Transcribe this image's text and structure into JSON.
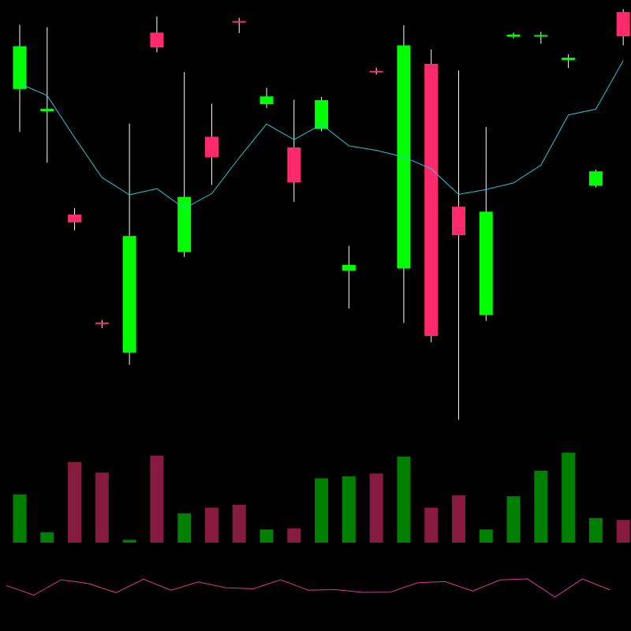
{
  "chart_data": {
    "type": "candlestick",
    "grid": false,
    "background": "#000000",
    "colors": {
      "up_body": "#00ff00",
      "down_body": "#ff2a6d",
      "wick": "#ffffff",
      "ma_line": "#1fc8d8",
      "up_volume": "#008000",
      "down_volume": "#861a40",
      "indicator_line": "#e0359a"
    },
    "price_range": [
      0,
      100
    ],
    "candles": [
      {
        "open": 80.3,
        "close": 90.7,
        "high": 95.9,
        "low": 69.9,
        "ma": 81.6
      },
      {
        "open": 74.9,
        "close": 75.5,
        "high": 95.3,
        "low": 62.4,
        "ma": 78.7
      },
      {
        "open": 49.8,
        "close": 47.9,
        "high": 51.4,
        "low": 46.0,
        "ma": 68.5
      },
      {
        "open": 23.6,
        "close": 23.2,
        "high": 24.2,
        "low": 22.2,
        "ma": 58.8
      },
      {
        "open": 16.3,
        "close": 44.6,
        "high": 71.9,
        "low": 13.3,
        "ma": 54.6
      },
      {
        "open": 94.0,
        "close": 90.4,
        "high": 97.9,
        "low": 89.2,
        "ma": 56.1
      },
      {
        "open": 40.7,
        "close": 54.1,
        "high": 84.4,
        "low": 39.5,
        "ma": 51.3
      },
      {
        "open": 68.7,
        "close": 63.7,
        "high": 76.7,
        "low": 57.0,
        "ma": 54.9
      },
      {
        "open": 96.8,
        "close": 96.6,
        "high": 97.6,
        "low": 93.9,
        "ma": 63.6
      },
      {
        "open": 76.6,
        "close": 78.5,
        "high": 80.6,
        "low": 75.7,
        "ma": 71.8
      },
      {
        "open": 66.1,
        "close": 57.6,
        "high": 77.7,
        "low": 52.9,
        "ma": 68.0
      },
      {
        "open": 70.6,
        "close": 77.6,
        "high": 78.4,
        "low": 70.0,
        "ma": 71.7
      },
      {
        "open": 36.2,
        "close": 37.6,
        "high": 42.2,
        "low": 27.0,
        "ma": 66.5
      },
      {
        "open": 84.7,
        "close": 84.5,
        "high": 85.5,
        "low": 83.8,
        "ma": 65.4
      },
      {
        "open": 36.7,
        "close": 90.9,
        "high": 95.8,
        "low": 23.5,
        "ma": 63.8
      },
      {
        "open": 86.4,
        "close": 20.3,
        "high": 89.9,
        "low": 18.8,
        "ma": 60.9
      },
      {
        "open": 51.7,
        "close": 44.8,
        "high": 84.8,
        "low": 0.0,
        "ma": 54.7
      },
      {
        "open": 25.4,
        "close": 50.5,
        "high": 71.1,
        "low": 24.0,
        "ma": 55.9
      },
      {
        "open": 93.0,
        "close": 93.5,
        "high": 94.0,
        "low": 92.6,
        "ma": 57.5
      },
      {
        "open": 93.4,
        "close": 93.4,
        "high": 94.2,
        "low": 91.3,
        "ma": 61.8
      },
      {
        "open": 87.3,
        "close": 87.9,
        "high": 88.7,
        "low": 85.4,
        "ma": 74.0
      },
      {
        "open": 56.8,
        "close": 60.3,
        "high": 60.7,
        "low": 56.4,
        "ma": 75.4
      },
      {
        "open": 99.0,
        "close": 93.1,
        "high": 99.7,
        "low": 90.9,
        "ma": 87.2
      }
    ],
    "volume_range": [
      0,
      100
    ],
    "volumes": [
      {
        "value": 51,
        "direction": "up"
      },
      {
        "value": 11,
        "direction": "up"
      },
      {
        "value": 85,
        "direction": "down"
      },
      {
        "value": 74,
        "direction": "down"
      },
      {
        "value": 3,
        "direction": "up"
      },
      {
        "value": 92,
        "direction": "down"
      },
      {
        "value": 31,
        "direction": "up"
      },
      {
        "value": 37,
        "direction": "down"
      },
      {
        "value": 40,
        "direction": "down"
      },
      {
        "value": 14,
        "direction": "up"
      },
      {
        "value": 15,
        "direction": "down"
      },
      {
        "value": 68,
        "direction": "up"
      },
      {
        "value": 70,
        "direction": "up"
      },
      {
        "value": 73,
        "direction": "down"
      },
      {
        "value": 91,
        "direction": "up"
      },
      {
        "value": 37,
        "direction": "down"
      },
      {
        "value": 50,
        "direction": "down"
      },
      {
        "value": 14,
        "direction": "up"
      },
      {
        "value": 49,
        "direction": "up"
      },
      {
        "value": 76,
        "direction": "up"
      },
      {
        "value": 95,
        "direction": "up"
      },
      {
        "value": 26,
        "direction": "up"
      },
      {
        "value": 24,
        "direction": "down"
      }
    ],
    "indicator_range": [
      0,
      100
    ],
    "indicator": [
      62,
      27,
      83,
      69,
      36,
      85,
      45,
      75,
      54,
      50,
      83,
      45,
      47,
      37,
      38,
      72,
      76,
      42,
      82,
      86,
      20,
      86,
      46
    ]
  }
}
